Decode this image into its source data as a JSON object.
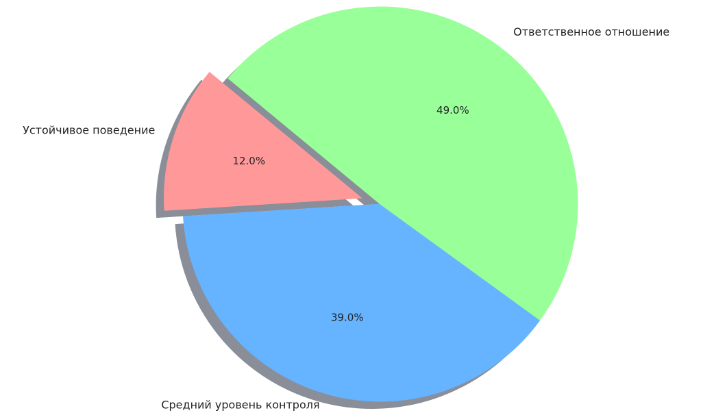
{
  "chart_data": {
    "type": "pie",
    "categories": [
      "Устойчивое поведение",
      "Средний уровень контроля",
      "Ответственное отношение"
    ],
    "values": [
      12,
      39,
      49
    ],
    "value_labels": [
      "12.0%",
      "39.0%",
      "49.0%"
    ],
    "colors": [
      "#ff9999",
      "#66b3ff",
      "#99ff99"
    ]
  }
}
